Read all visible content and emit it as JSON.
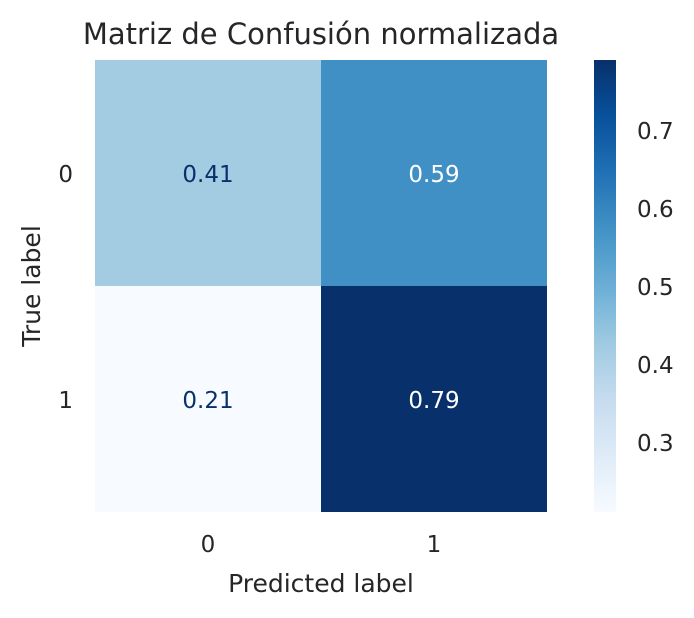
{
  "chart_data": {
    "type": "heatmap",
    "title": "Matriz de Confusión normalizada",
    "xlabel": "Predicted label",
    "ylabel": "True label",
    "x_categories": [
      "0",
      "1"
    ],
    "y_categories": [
      "0",
      "1"
    ],
    "values": [
      [
        0.41,
        0.59
      ],
      [
        0.21,
        0.79
      ]
    ],
    "value_labels": [
      [
        "0.41",
        "0.59"
      ],
      [
        "0.21",
        "0.79"
      ]
    ],
    "colormap": "Blues",
    "colorbar": {
      "range": [
        0.21,
        0.79
      ],
      "ticks": [
        0.3,
        0.4,
        0.5,
        0.6,
        0.7
      ],
      "tick_labels": [
        "0.3",
        "0.4",
        "0.5",
        "0.6",
        "0.7"
      ]
    },
    "grid": false,
    "colors": {
      "cells": [
        [
          "#a3cce3",
          "#4190c5"
        ],
        [
          "#f7fbff",
          "#08306b"
        ]
      ],
      "label_light_bg": "#08306b",
      "label_dark_bg": "#ffffff",
      "text": "#262626"
    }
  }
}
